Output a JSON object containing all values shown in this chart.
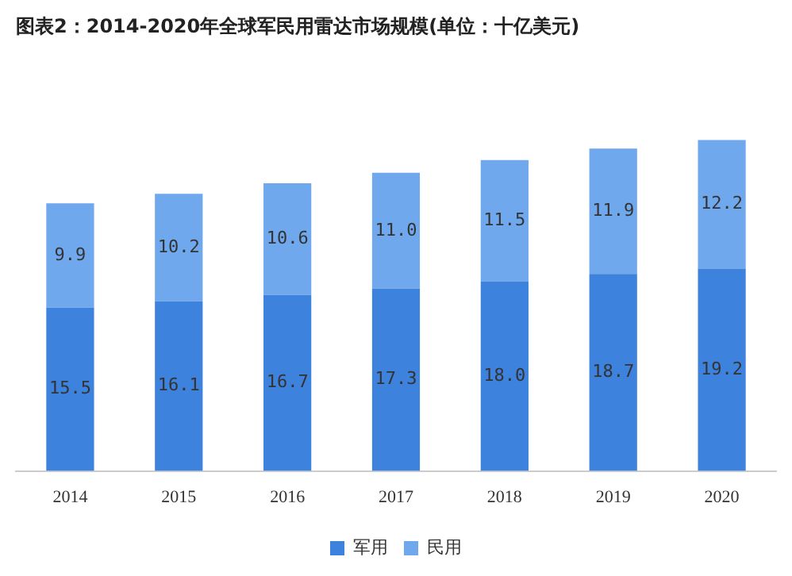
{
  "chart_data": {
    "type": "bar",
    "title": "图表2：2014-2020年全球军民用雷达市场规模(单位：十亿美元)",
    "categories": [
      "2014",
      "2015",
      "2016",
      "2017",
      "2018",
      "2019",
      "2020"
    ],
    "stacked": true,
    "legend": "bottom",
    "grid": false,
    "series": [
      {
        "name": "军用",
        "color": "#3d82dc",
        "values": [
          15.5,
          16.1,
          16.7,
          17.3,
          18.0,
          18.7,
          19.2
        ],
        "value_labels": [
          "15.5",
          "16.1",
          "16.7",
          "17.3",
          "18.0",
          "18.7",
          "19.2"
        ]
      },
      {
        "name": "民用",
        "color": "#6fa8ec",
        "values": [
          9.9,
          10.2,
          10.6,
          11.0,
          11.5,
          11.9,
          12.2
        ],
        "value_labels": [
          "9.9",
          "10.2",
          "10.6",
          "11.0",
          "11.5",
          "11.9",
          "12.2"
        ]
      }
    ]
  }
}
